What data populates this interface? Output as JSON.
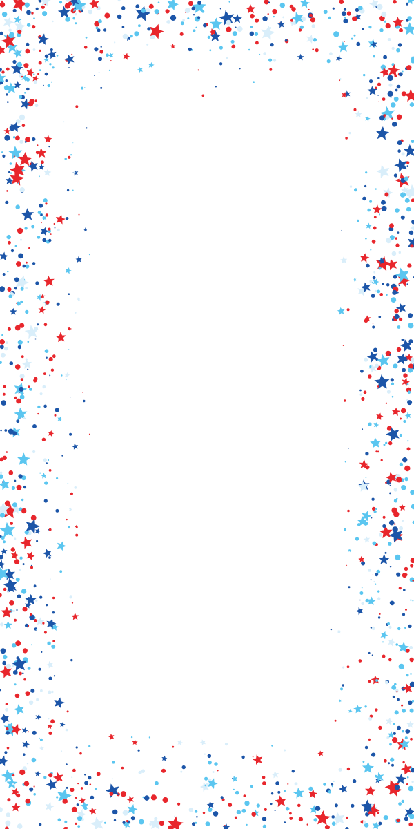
{
  "palette": {
    "background": "#ffffff",
    "red": "#e8262c",
    "navy": "#1c55a8",
    "sky": "#5bc6f0",
    "pale": "#d9eefa"
  },
  "decoration": {
    "type": "star-and-dot-confetti-frame",
    "shapes": [
      "star-icon",
      "dot"
    ]
  }
}
